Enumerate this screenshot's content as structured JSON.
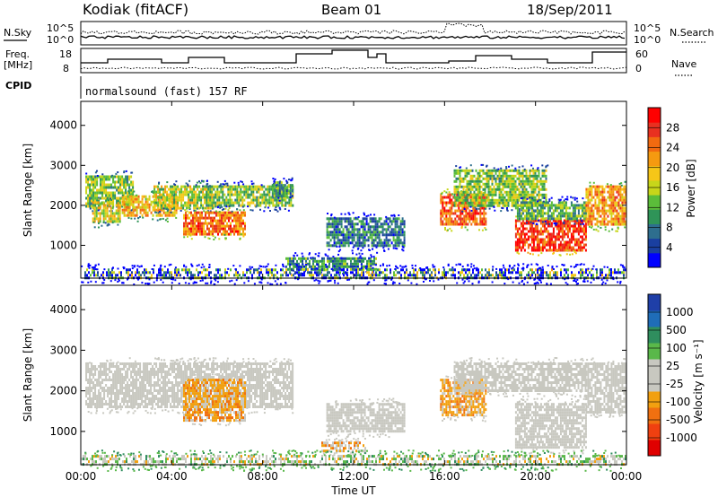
{
  "header": {
    "station": "Kodiak (fitACF)",
    "beam": "Beam 01",
    "date": "18/Sep/2011"
  },
  "summary": {
    "left_labels": {
      "nsky": "N.Sky",
      "freq_line1": "Freq.",
      "freq_line2": "[MHz]",
      "cpid": "CPID"
    },
    "right_labels": {
      "nsearch": "N.Search",
      "nave": "Nave"
    },
    "noise_ticks_left": [
      "10^5",
      "10^0"
    ],
    "noise_ticks_right": [
      "10^5",
      "10^0"
    ],
    "freq_ticks": [
      "18",
      "8"
    ],
    "nave_ticks": [
      "60",
      "0"
    ],
    "cpid_text": "normalsound (fast) 157 RF"
  },
  "axes": {
    "xlabel": "Time UT",
    "xticks": [
      "00:00",
      "04:00",
      "08:00",
      "12:00",
      "16:00",
      "20:00",
      "00:00"
    ],
    "ylabel": "Slant Range [km]",
    "yticks": [
      "4000",
      "3000",
      "2000",
      "1000"
    ]
  },
  "colorbars": {
    "power": {
      "label": "Power [dB]",
      "ticks": [
        "28",
        "24",
        "20",
        "16",
        "12",
        "8",
        "4"
      ],
      "colors": [
        "#0000ff",
        "#1a3fa0",
        "#2e6e8e",
        "#2f9458",
        "#5bbd3a",
        "#c7d61a",
        "#f6c618",
        "#f59a10",
        "#f26a10",
        "#e83020",
        "#ff0000"
      ]
    },
    "velocity": {
      "label": "Velocity [m s⁻¹]",
      "ticks": [
        "1000",
        "500",
        "100",
        "25",
        "-25",
        "-100",
        "-500",
        "-1000"
      ],
      "colors": [
        "#1f3fa8",
        "#1f6db8",
        "#2f8e5e",
        "#5ab84a",
        "#c8c8c0",
        "#c8c8c0",
        "#f2a010",
        "#f07010",
        "#f04010",
        "#e00000"
      ]
    }
  },
  "chart_data": [
    {
      "type": "heatmap",
      "title": "Power",
      "xlabel": "Time UT",
      "ylabel": "Slant Range [km]",
      "xlim": [
        0,
        24
      ],
      "ylim": [
        180,
        4600
      ],
      "colorbar_label": "Power [dB]",
      "colorbar_range": [
        0,
        32
      ],
      "patches": [
        {
          "t0": 0.2,
          "t1": 2.3,
          "r0": 2000,
          "r1": 2750,
          "value": 14
        },
        {
          "t0": 0.5,
          "t1": 1.7,
          "r0": 1600,
          "r1": 2100,
          "value": 18
        },
        {
          "t0": 1.8,
          "t1": 4.2,
          "r0": 1750,
          "r1": 2250,
          "value": 20
        },
        {
          "t0": 3.2,
          "t1": 5.8,
          "r0": 1950,
          "r1": 2500,
          "value": 16
        },
        {
          "t0": 4.5,
          "t1": 7.2,
          "r0": 1300,
          "r1": 1850,
          "value": 24
        },
        {
          "t0": 5.5,
          "t1": 9.3,
          "r0": 2000,
          "r1": 2500,
          "value": 14
        },
        {
          "t0": 8.4,
          "t1": 9.3,
          "r0": 2250,
          "r1": 2600,
          "value": 10
        },
        {
          "t0": 9.0,
          "t1": 13.0,
          "r0": 400,
          "r1": 700,
          "value": 10
        },
        {
          "t0": 10.8,
          "t1": 14.2,
          "r0": 1000,
          "r1": 1700,
          "value": 8
        },
        {
          "t0": 15.8,
          "t1": 17.8,
          "r0": 1500,
          "r1": 2300,
          "value": 26
        },
        {
          "t0": 16.4,
          "t1": 20.5,
          "r0": 2000,
          "r1": 2900,
          "value": 14
        },
        {
          "t0": 19.1,
          "t1": 22.2,
          "r0": 900,
          "r1": 1650,
          "value": 28
        },
        {
          "t0": 19.1,
          "t1": 22.2,
          "r0": 1650,
          "r1": 2100,
          "value": 12
        },
        {
          "t0": 22.2,
          "t1": 24.0,
          "r0": 1500,
          "r1": 2500,
          "value": 22
        },
        {
          "t0": 0.0,
          "t1": 24.0,
          "r0": 180,
          "r1": 420,
          "value": 8
        }
      ]
    },
    {
      "type": "heatmap",
      "title": "Velocity",
      "xlabel": "Time UT",
      "ylabel": "Slant Range [km]",
      "xlim": [
        0,
        24
      ],
      "ylim": [
        180,
        4600
      ],
      "colorbar_label": "Velocity [m s⁻¹]",
      "colorbar_range": [
        -1000,
        1000
      ],
      "patches": [
        {
          "t0": 0.2,
          "t1": 9.3,
          "r0": 1600,
          "r1": 2700,
          "value": 0
        },
        {
          "t0": 4.5,
          "t1": 7.2,
          "r0": 1300,
          "r1": 2300,
          "value": -300
        },
        {
          "t0": 10.8,
          "t1": 14.2,
          "r0": 1000,
          "r1": 1700,
          "value": 0
        },
        {
          "t0": 10.5,
          "t1": 12.5,
          "r0": 500,
          "r1": 750,
          "value": -200
        },
        {
          "t0": 15.8,
          "t1": 17.8,
          "r0": 1400,
          "r1": 2300,
          "value": -300
        },
        {
          "t0": 16.4,
          "t1": 22.2,
          "r0": 2000,
          "r1": 2700,
          "value": 0
        },
        {
          "t0": 19.1,
          "t1": 22.2,
          "r0": 600,
          "r1": 1700,
          "value": 0
        },
        {
          "t0": 22.2,
          "t1": 24.0,
          "r0": 1500,
          "r1": 2700,
          "value": 0
        },
        {
          "t0": 0.0,
          "t1": 24.0,
          "r0": 180,
          "r1": 420,
          "value": 60
        }
      ]
    }
  ]
}
